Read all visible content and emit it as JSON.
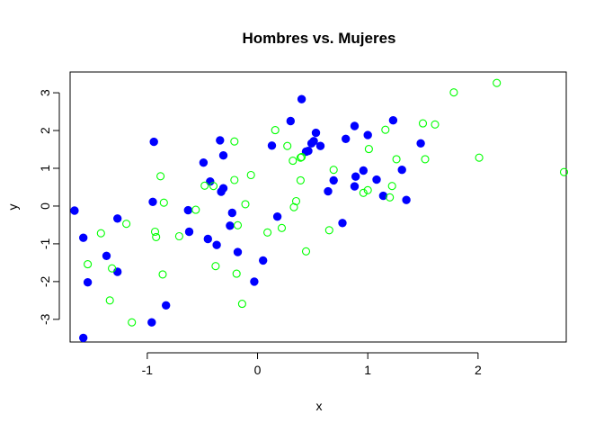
{
  "chart_data": {
    "type": "scatter",
    "title": "Hombres vs. Mujeres",
    "xlabel": "x",
    "ylabel": "y",
    "xlim": [
      -1.7,
      2.8
    ],
    "ylim": [
      -3.6,
      3.55
    ],
    "xticks": [
      -1,
      0,
      1,
      2
    ],
    "yticks": [
      -3,
      -2,
      -1,
      0,
      1,
      2,
      3
    ],
    "grid": false,
    "legend": "none",
    "series": [
      {
        "marker": "filled-circle",
        "color": "#0000ff",
        "points": [
          [
            -1.66,
            -0.12
          ],
          [
            -1.58,
            -0.84
          ],
          [
            -1.58,
            -3.49
          ],
          [
            -1.54,
            -2.02
          ],
          [
            -1.37,
            -1.32
          ],
          [
            -1.27,
            -0.33
          ],
          [
            -1.27,
            -1.74
          ],
          [
            -0.96,
            -3.08
          ],
          [
            -0.95,
            0.11
          ],
          [
            -0.94,
            1.7
          ],
          [
            -0.83,
            -2.63
          ],
          [
            -0.63,
            -0.11
          ],
          [
            -0.62,
            -0.68
          ],
          [
            -0.49,
            1.15
          ],
          [
            -0.45,
            -0.87
          ],
          [
            -0.43,
            0.65
          ],
          [
            -0.37,
            -1.03
          ],
          [
            -0.34,
            1.74
          ],
          [
            -0.33,
            0.38
          ],
          [
            -0.31,
            0.47
          ],
          [
            -0.31,
            1.34
          ],
          [
            -0.25,
            -0.52
          ],
          [
            -0.23,
            -0.18
          ],
          [
            -0.18,
            -1.22
          ],
          [
            -0.03,
            -2.0
          ],
          [
            0.05,
            -1.44
          ],
          [
            0.13,
            1.6
          ],
          [
            0.18,
            -0.28
          ],
          [
            0.3,
            2.25
          ],
          [
            0.4,
            2.83
          ],
          [
            0.44,
            1.44
          ],
          [
            0.46,
            1.46
          ],
          [
            0.49,
            1.66
          ],
          [
            0.51,
            1.72
          ],
          [
            0.53,
            1.94
          ],
          [
            0.57,
            1.59
          ],
          [
            0.64,
            0.39
          ],
          [
            0.69,
            0.68
          ],
          [
            0.77,
            -0.45
          ],
          [
            0.8,
            1.78
          ],
          [
            0.88,
            0.52
          ],
          [
            0.88,
            2.12
          ],
          [
            0.89,
            0.78
          ],
          [
            0.96,
            0.94
          ],
          [
            1.0,
            1.88
          ],
          [
            1.08,
            0.7
          ],
          [
            1.14,
            0.27
          ],
          [
            1.23,
            2.27
          ],
          [
            1.31,
            0.96
          ],
          [
            1.35,
            0.16
          ],
          [
            1.48,
            1.66
          ]
        ]
      },
      {
        "marker": "open-circle",
        "color": "#00ff00",
        "points": [
          [
            -1.54,
            -1.54
          ],
          [
            -1.42,
            -0.72
          ],
          [
            -1.34,
            -2.5
          ],
          [
            -1.32,
            -1.65
          ],
          [
            -1.19,
            -0.47
          ],
          [
            -1.14,
            -3.08
          ],
          [
            -0.93,
            -0.68
          ],
          [
            -0.92,
            -0.82
          ],
          [
            -0.88,
            0.79
          ],
          [
            -0.86,
            -1.81
          ],
          [
            -0.85,
            0.09
          ],
          [
            -0.71,
            -0.8
          ],
          [
            -0.56,
            -0.1
          ],
          [
            -0.48,
            0.54
          ],
          [
            -0.4,
            0.53
          ],
          [
            -0.38,
            -1.59
          ],
          [
            -0.21,
            0.69
          ],
          [
            -0.21,
            1.71
          ],
          [
            -0.19,
            -1.79
          ],
          [
            -0.18,
            -0.51
          ],
          [
            -0.14,
            -2.59
          ],
          [
            -0.11,
            0.05
          ],
          [
            -0.06,
            0.82
          ],
          [
            0.09,
            -0.7
          ],
          [
            0.16,
            2.01
          ],
          [
            0.22,
            -0.58
          ],
          [
            0.27,
            1.59
          ],
          [
            0.32,
            1.2
          ],
          [
            0.33,
            -0.03
          ],
          [
            0.35,
            0.13
          ],
          [
            0.39,
            0.68
          ],
          [
            0.39,
            1.28
          ],
          [
            0.4,
            1.3
          ],
          [
            0.44,
            -1.2
          ],
          [
            0.65,
            -0.64
          ],
          [
            0.69,
            0.96
          ],
          [
            0.96,
            0.35
          ],
          [
            1.0,
            0.42
          ],
          [
            1.01,
            1.51
          ],
          [
            1.16,
            2.02
          ],
          [
            1.2,
            0.23
          ],
          [
            1.22,
            0.53
          ],
          [
            1.26,
            1.24
          ],
          [
            1.5,
            2.19
          ],
          [
            1.52,
            1.24
          ],
          [
            1.61,
            2.16
          ],
          [
            1.78,
            3.01
          ],
          [
            2.01,
            1.28
          ],
          [
            2.17,
            3.26
          ],
          [
            2.78,
            0.9
          ]
        ]
      }
    ]
  }
}
